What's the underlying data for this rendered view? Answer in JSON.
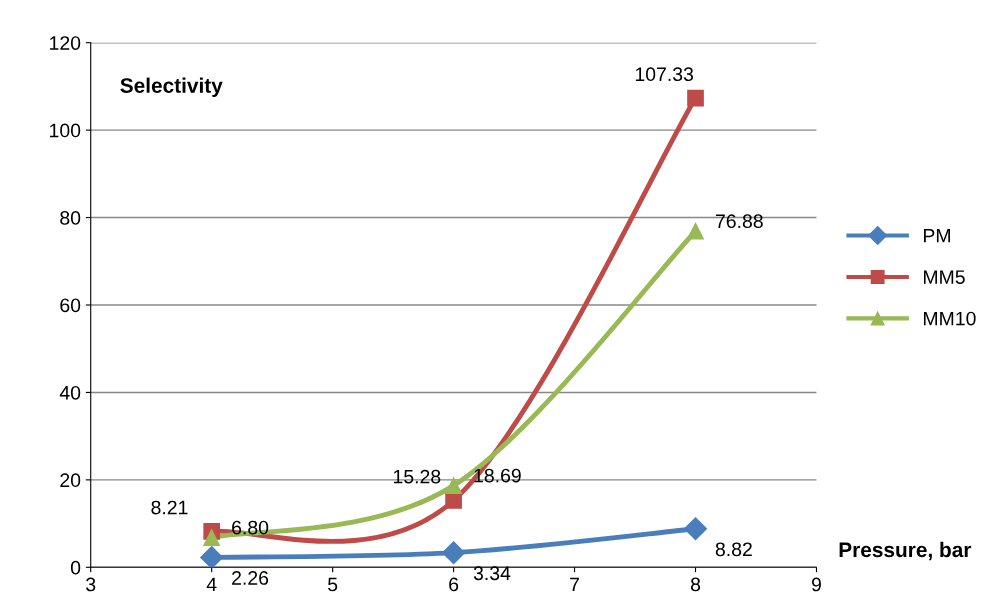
{
  "chart_data": {
    "type": "line",
    "xlabel": "Pressure, bar",
    "ylabel": "Selectivity",
    "x": [
      4,
      6,
      8
    ],
    "series": [
      {
        "name": "PM",
        "color": "#4a7ebb",
        "marker": "diamond",
        "values": [
          2.26,
          3.34,
          8.82
        ],
        "value_labels": [
          "2.26",
          "3.34",
          "8.82"
        ]
      },
      {
        "name": "MM5",
        "color": "#be4b48",
        "marker": "square",
        "values": [
          8.21,
          15.28,
          107.33
        ],
        "value_labels": [
          "8.21",
          "15.28",
          "107.33"
        ]
      },
      {
        "name": "MM10",
        "color": "#98b954",
        "marker": "triangle",
        "values": [
          6.8,
          18.69,
          76.88
        ],
        "value_labels": [
          "6.80",
          "18.69",
          "76.88"
        ]
      }
    ],
    "xlim": [
      3,
      9
    ],
    "xticks": [
      3,
      4,
      5,
      6,
      7,
      8,
      9
    ],
    "ylim": [
      0,
      120
    ],
    "yticks": [
      0,
      20,
      40,
      60,
      80,
      100,
      120
    ],
    "grid": "y",
    "legend": "right",
    "line_style": "solid"
  }
}
